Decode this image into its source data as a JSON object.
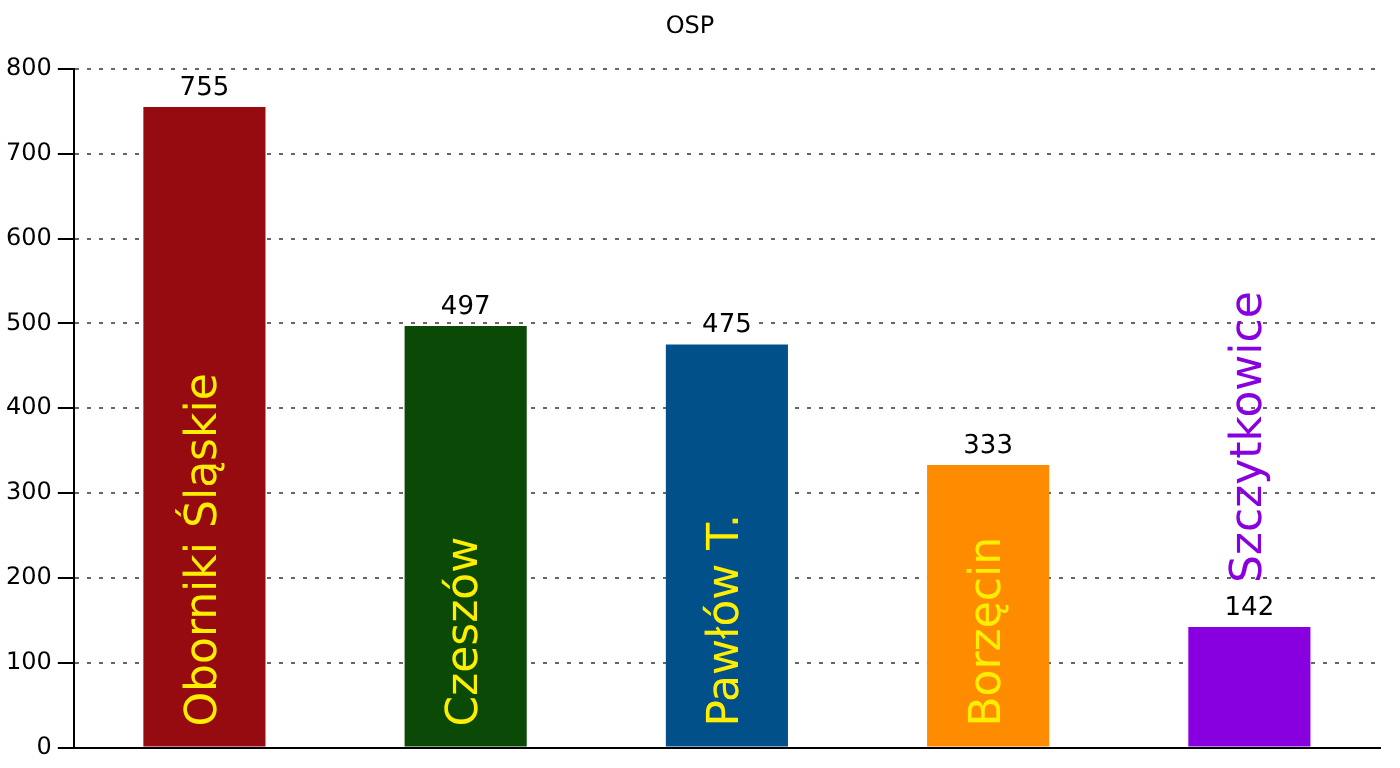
{
  "chart_data": {
    "type": "bar",
    "title": "OSP",
    "categories": [
      "Oborniki Śląskie",
      "Czeszów",
      "Pawłów T.",
      "Borzęcin",
      "Szczytkowice"
    ],
    "values": [
      755,
      497,
      475,
      333,
      142
    ],
    "colors": [
      "#960b10",
      "#0b4a06",
      "#02508a",
      "#ff8c00",
      "#8800e0"
    ],
    "ylim": [
      0,
      800
    ],
    "yticks": [
      0,
      100,
      200,
      300,
      400,
      500,
      600,
      700,
      800
    ],
    "grid": "y",
    "data_labels": true,
    "tick_labels": "y",
    "legend": false
  }
}
